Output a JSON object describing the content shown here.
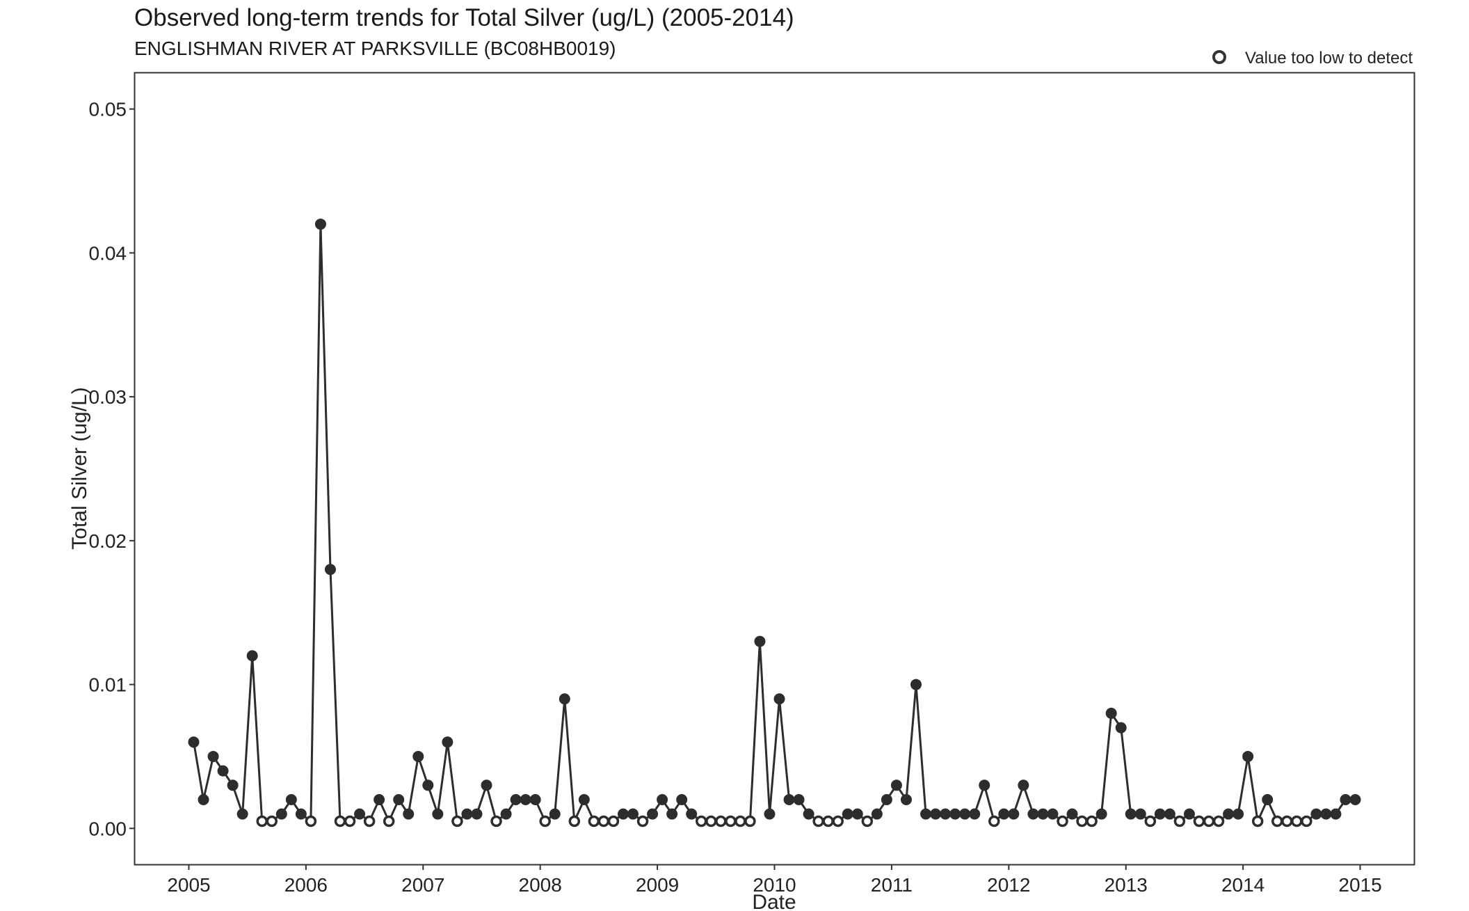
{
  "chart_data": {
    "type": "line",
    "title": "Observed long-term trends for Total Silver (ug/L) (2005-2014)",
    "subtitle": "ENGLISHMAN RIVER AT PARKSVILLE (BC08HB0019)",
    "xlabel": "Date",
    "ylabel": "Total Silver (ug/L)",
    "xlim": [
      2004.54,
      2015.46
    ],
    "ylim": [
      -0.0025,
      0.0525
    ],
    "x_ticks": [
      "2005",
      "2006",
      "2007",
      "2008",
      "2009",
      "2010",
      "2011",
      "2012",
      "2013",
      "2014",
      "2015"
    ],
    "y_ticks": [
      "0.00",
      "0.01",
      "0.02",
      "0.03",
      "0.04",
      "0.05"
    ],
    "grid": false,
    "legend": {
      "position": "top-right",
      "label": "Value too low to detect"
    },
    "series": [
      {
        "points": [
          {
            "x": "2005-01",
            "y": 0.006,
            "nd": false
          },
          {
            "x": "2005-02",
            "y": 0.002,
            "nd": false
          },
          {
            "x": "2005-03",
            "y": 0.005,
            "nd": false
          },
          {
            "x": "2005-04",
            "y": 0.004,
            "nd": false
          },
          {
            "x": "2005-05",
            "y": 0.003,
            "nd": false
          },
          {
            "x": "2005-06",
            "y": 0.001,
            "nd": false
          },
          {
            "x": "2005-07",
            "y": 0.012,
            "nd": false
          },
          {
            "x": "2005-08",
            "y": 0.0005,
            "nd": true
          },
          {
            "x": "2005-09",
            "y": 0.0005,
            "nd": true
          },
          {
            "x": "2005-10",
            "y": 0.001,
            "nd": false
          },
          {
            "x": "2005-11",
            "y": 0.002,
            "nd": false
          },
          {
            "x": "2005-12",
            "y": 0.001,
            "nd": false
          },
          {
            "x": "2006-01",
            "y": 0.0005,
            "nd": true
          },
          {
            "x": "2006-02",
            "y": 0.042,
            "nd": false
          },
          {
            "x": "2006-03",
            "y": 0.018,
            "nd": false
          },
          {
            "x": "2006-04",
            "y": 0.0005,
            "nd": true
          },
          {
            "x": "2006-05",
            "y": 0.0005,
            "nd": true
          },
          {
            "x": "2006-06",
            "y": 0.001,
            "nd": false
          },
          {
            "x": "2006-07",
            "y": 0.0005,
            "nd": true
          },
          {
            "x": "2006-08",
            "y": 0.002,
            "nd": false
          },
          {
            "x": "2006-09",
            "y": 0.0005,
            "nd": true
          },
          {
            "x": "2006-10",
            "y": 0.002,
            "nd": false
          },
          {
            "x": "2006-11",
            "y": 0.001,
            "nd": false
          },
          {
            "x": "2006-12",
            "y": 0.005,
            "nd": false
          },
          {
            "x": "2007-01",
            "y": 0.003,
            "nd": false
          },
          {
            "x": "2007-02",
            "y": 0.001,
            "nd": false
          },
          {
            "x": "2007-03",
            "y": 0.006,
            "nd": false
          },
          {
            "x": "2007-04",
            "y": 0.0005,
            "nd": true
          },
          {
            "x": "2007-05",
            "y": 0.001,
            "nd": false
          },
          {
            "x": "2007-06",
            "y": 0.001,
            "nd": false
          },
          {
            "x": "2007-07",
            "y": 0.003,
            "nd": false
          },
          {
            "x": "2007-08",
            "y": 0.0005,
            "nd": true
          },
          {
            "x": "2007-09",
            "y": 0.001,
            "nd": false
          },
          {
            "x": "2007-10",
            "y": 0.002,
            "nd": false
          },
          {
            "x": "2007-11",
            "y": 0.002,
            "nd": false
          },
          {
            "x": "2007-12",
            "y": 0.002,
            "nd": false
          },
          {
            "x": "2008-01",
            "y": 0.0005,
            "nd": true
          },
          {
            "x": "2008-02",
            "y": 0.001,
            "nd": false
          },
          {
            "x": "2008-03",
            "y": 0.009,
            "nd": false
          },
          {
            "x": "2008-04",
            "y": 0.0005,
            "nd": true
          },
          {
            "x": "2008-05",
            "y": 0.002,
            "nd": false
          },
          {
            "x": "2008-06",
            "y": 0.0005,
            "nd": true
          },
          {
            "x": "2008-07",
            "y": 0.0005,
            "nd": true
          },
          {
            "x": "2008-08",
            "y": 0.0005,
            "nd": true
          },
          {
            "x": "2008-09",
            "y": 0.001,
            "nd": false
          },
          {
            "x": "2008-10",
            "y": 0.001,
            "nd": false
          },
          {
            "x": "2008-11",
            "y": 0.0005,
            "nd": true
          },
          {
            "x": "2008-12",
            "y": 0.001,
            "nd": false
          },
          {
            "x": "2009-01",
            "y": 0.002,
            "nd": false
          },
          {
            "x": "2009-02",
            "y": 0.001,
            "nd": false
          },
          {
            "x": "2009-03",
            "y": 0.002,
            "nd": false
          },
          {
            "x": "2009-04",
            "y": 0.001,
            "nd": false
          },
          {
            "x": "2009-05",
            "y": 0.0005,
            "nd": true
          },
          {
            "x": "2009-06",
            "y": 0.0005,
            "nd": true
          },
          {
            "x": "2009-07",
            "y": 0.0005,
            "nd": true
          },
          {
            "x": "2009-08",
            "y": 0.0005,
            "nd": true
          },
          {
            "x": "2009-09",
            "y": 0.0005,
            "nd": true
          },
          {
            "x": "2009-10",
            "y": 0.0005,
            "nd": true
          },
          {
            "x": "2009-11",
            "y": 0.013,
            "nd": false
          },
          {
            "x": "2009-12",
            "y": 0.001,
            "nd": false
          },
          {
            "x": "2010-01",
            "y": 0.009,
            "nd": false
          },
          {
            "x": "2010-02",
            "y": 0.002,
            "nd": false
          },
          {
            "x": "2010-03",
            "y": 0.002,
            "nd": false
          },
          {
            "x": "2010-04",
            "y": 0.001,
            "nd": false
          },
          {
            "x": "2010-05",
            "y": 0.0005,
            "nd": true
          },
          {
            "x": "2010-06",
            "y": 0.0005,
            "nd": true
          },
          {
            "x": "2010-07",
            "y": 0.0005,
            "nd": true
          },
          {
            "x": "2010-08",
            "y": 0.001,
            "nd": false
          },
          {
            "x": "2010-09",
            "y": 0.001,
            "nd": false
          },
          {
            "x": "2010-10",
            "y": 0.0005,
            "nd": true
          },
          {
            "x": "2010-11",
            "y": 0.001,
            "nd": false
          },
          {
            "x": "2010-12",
            "y": 0.002,
            "nd": false
          },
          {
            "x": "2011-01",
            "y": 0.003,
            "nd": false
          },
          {
            "x": "2011-02",
            "y": 0.002,
            "nd": false
          },
          {
            "x": "2011-03",
            "y": 0.01,
            "nd": false
          },
          {
            "x": "2011-04",
            "y": 0.001,
            "nd": false
          },
          {
            "x": "2011-05",
            "y": 0.001,
            "nd": false
          },
          {
            "x": "2011-06",
            "y": 0.001,
            "nd": false
          },
          {
            "x": "2011-07",
            "y": 0.001,
            "nd": false
          },
          {
            "x": "2011-08",
            "y": 0.001,
            "nd": false
          },
          {
            "x": "2011-09",
            "y": 0.001,
            "nd": false
          },
          {
            "x": "2011-10",
            "y": 0.003,
            "nd": false
          },
          {
            "x": "2011-11",
            "y": 0.0005,
            "nd": true
          },
          {
            "x": "2011-12",
            "y": 0.001,
            "nd": false
          },
          {
            "x": "2012-01",
            "y": 0.001,
            "nd": false
          },
          {
            "x": "2012-02",
            "y": 0.003,
            "nd": false
          },
          {
            "x": "2012-03",
            "y": 0.001,
            "nd": false
          },
          {
            "x": "2012-04",
            "y": 0.001,
            "nd": false
          },
          {
            "x": "2012-05",
            "y": 0.001,
            "nd": false
          },
          {
            "x": "2012-06",
            "y": 0.0005,
            "nd": true
          },
          {
            "x": "2012-07",
            "y": 0.001,
            "nd": false
          },
          {
            "x": "2012-08",
            "y": 0.0005,
            "nd": true
          },
          {
            "x": "2012-09",
            "y": 0.0005,
            "nd": true
          },
          {
            "x": "2012-10",
            "y": 0.001,
            "nd": false
          },
          {
            "x": "2012-11",
            "y": 0.008,
            "nd": false
          },
          {
            "x": "2012-12",
            "y": 0.007,
            "nd": false
          },
          {
            "x": "2013-01",
            "y": 0.001,
            "nd": false
          },
          {
            "x": "2013-02",
            "y": 0.001,
            "nd": false
          },
          {
            "x": "2013-03",
            "y": 0.0005,
            "nd": true
          },
          {
            "x": "2013-04",
            "y": 0.001,
            "nd": false
          },
          {
            "x": "2013-05",
            "y": 0.001,
            "nd": false
          },
          {
            "x": "2013-06",
            "y": 0.0005,
            "nd": true
          },
          {
            "x": "2013-07",
            "y": 0.001,
            "nd": false
          },
          {
            "x": "2013-08",
            "y": 0.0005,
            "nd": true
          },
          {
            "x": "2013-09",
            "y": 0.0005,
            "nd": true
          },
          {
            "x": "2013-10",
            "y": 0.0005,
            "nd": true
          },
          {
            "x": "2013-11",
            "y": 0.001,
            "nd": false
          },
          {
            "x": "2013-12",
            "y": 0.001,
            "nd": false
          },
          {
            "x": "2014-01",
            "y": 0.005,
            "nd": false
          },
          {
            "x": "2014-02",
            "y": 0.0005,
            "nd": true
          },
          {
            "x": "2014-03",
            "y": 0.002,
            "nd": false
          },
          {
            "x": "2014-04",
            "y": 0.0005,
            "nd": true
          },
          {
            "x": "2014-05",
            "y": 0.0005,
            "nd": true
          },
          {
            "x": "2014-06",
            "y": 0.0005,
            "nd": true
          },
          {
            "x": "2014-07",
            "y": 0.0005,
            "nd": true
          },
          {
            "x": "2014-08",
            "y": 0.001,
            "nd": false
          },
          {
            "x": "2014-09",
            "y": 0.001,
            "nd": false
          },
          {
            "x": "2014-10",
            "y": 0.001,
            "nd": false
          },
          {
            "x": "2014-11",
            "y": 0.002,
            "nd": false
          },
          {
            "x": "2014-12",
            "y": 0.002,
            "nd": false
          }
        ]
      }
    ],
    "colors": {
      "series": "#2d2d2d",
      "axis": "#333333",
      "text": "#1a1a1a"
    }
  }
}
